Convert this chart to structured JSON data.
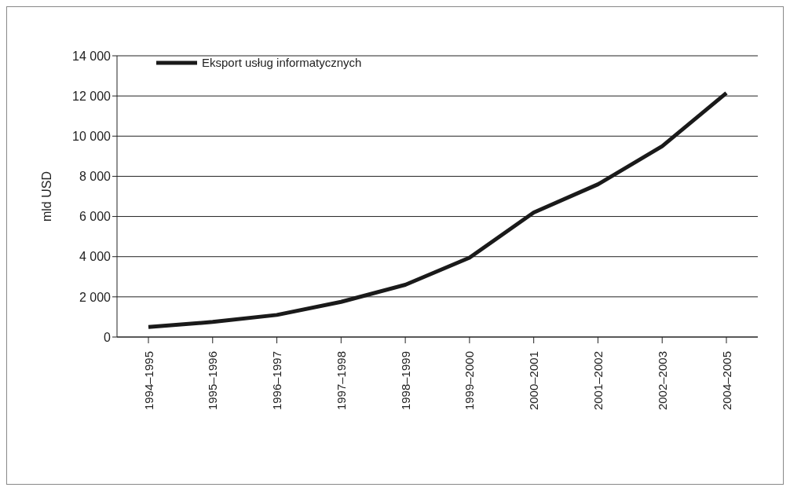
{
  "chart_data": {
    "type": "line",
    "ylabel": "mld USD",
    "categories": [
      "1994–1995",
      "1995–1996",
      "1996–1997",
      "1997–1998",
      "1998–1999",
      "1999–2000",
      "2000–2001",
      "2001–2002",
      "2002–2003",
      "2004–2005"
    ],
    "series": [
      {
        "name": "Eksport usług informatycznych",
        "color": "#1a1a1a",
        "values": [
          500,
          750,
          1100,
          1750,
          2600,
          3950,
          6200,
          7600,
          9500,
          12150
        ]
      }
    ],
    "ylim": [
      0,
      14000
    ],
    "yticks": [
      {
        "value": 0,
        "label": "0"
      },
      {
        "value": 2000,
        "label": "2 000"
      },
      {
        "value": 4000,
        "label": "4 000"
      },
      {
        "value": 6000,
        "label": "6 000"
      },
      {
        "value": 8000,
        "label": "8 000"
      },
      {
        "value": 10000,
        "label": "10 000"
      },
      {
        "value": 12000,
        "label": "12 000"
      },
      {
        "value": 14000,
        "label": "14 000"
      }
    ],
    "grid": "y",
    "legend": "top left",
    "marker": "none",
    "line_style": "solid"
  }
}
